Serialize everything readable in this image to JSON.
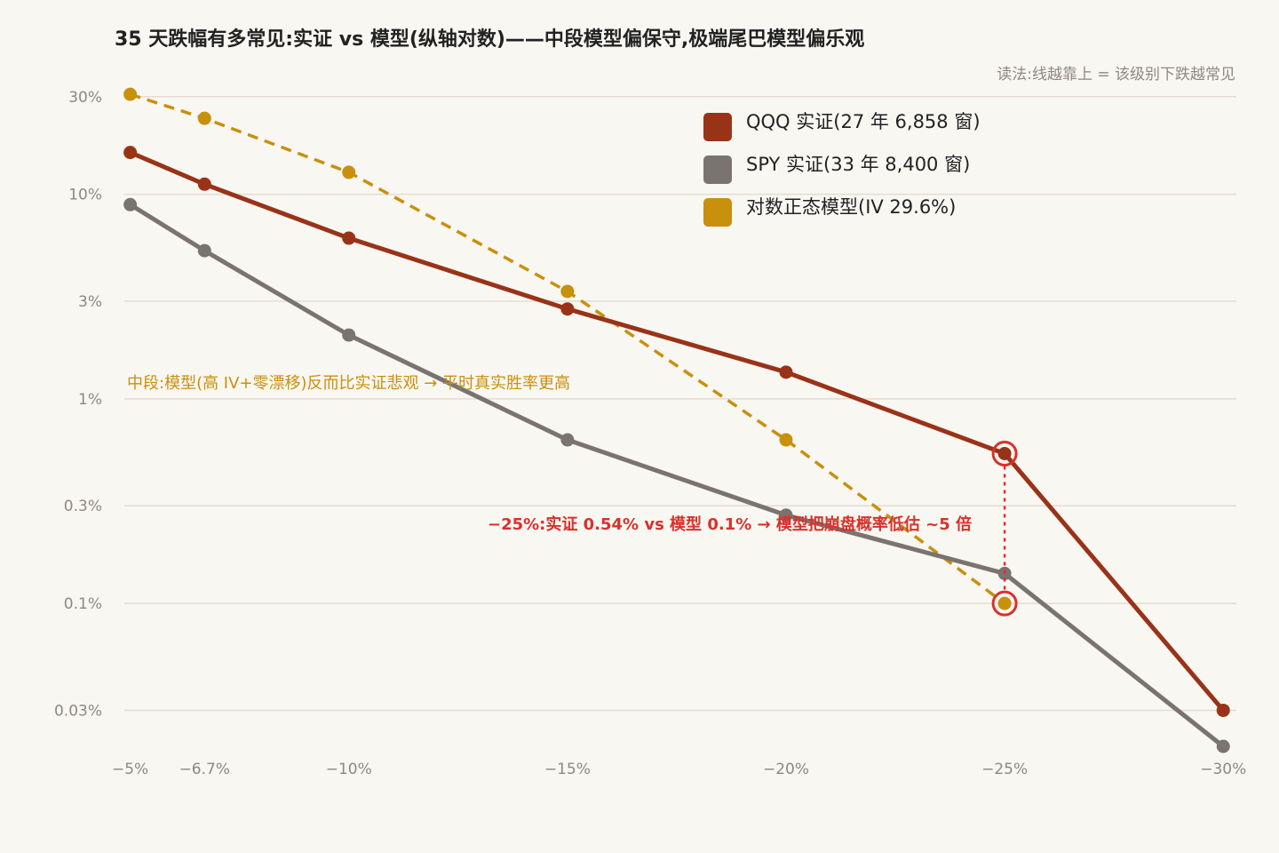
{
  "title": "35 天跌幅有多常见:实证 vs 模型(纵轴对数)——中段模型偏保守,极端尾巴模型偏乐观",
  "subtitle": "读法:线越靠上 = 该级别下跌越常见",
  "chart_data": {
    "type": "line",
    "yscale": "log",
    "ylim": [
      0.02,
      40
    ],
    "xlim": [
      -4.5,
      -30.3
    ],
    "grid": true,
    "legend_position": "top-right",
    "x_ticks": [
      {
        "value": -5,
        "label": "−5%"
      },
      {
        "value": -6.7,
        "label": "−6.7%"
      },
      {
        "value": -10,
        "label": "−10%"
      },
      {
        "value": -15,
        "label": "−15%"
      },
      {
        "value": -20,
        "label": "−20%"
      },
      {
        "value": -25,
        "label": "−25%"
      },
      {
        "value": -30,
        "label": "−30%"
      }
    ],
    "y_ticks": [
      {
        "value": 30,
        "label": "30%"
      },
      {
        "value": 10,
        "label": "10%"
      },
      {
        "value": 3,
        "label": "3%"
      },
      {
        "value": 1,
        "label": "1%"
      },
      {
        "value": 0.3,
        "label": "0.3%"
      },
      {
        "value": 0.1,
        "label": "0.1%"
      },
      {
        "value": 0.03,
        "label": "0.03%"
      }
    ],
    "series": [
      {
        "name": "QQQ 实证(27 年 6,858 窗)",
        "color": "#993318",
        "dash": false,
        "x": [
          -5,
          -6.7,
          -10,
          -15,
          -20,
          -25,
          -30
        ],
        "y": [
          16,
          11.2,
          6.1,
          2.75,
          1.35,
          0.54,
          0.03
        ]
      },
      {
        "name": "SPY 实证(33 年 8,400 窗)",
        "color": "#7a7370",
        "dash": false,
        "x": [
          -5,
          -6.7,
          -10,
          -15,
          -20,
          -25,
          -30
        ],
        "y": [
          8.9,
          5.3,
          2.05,
          0.63,
          0.27,
          0.14,
          0.02
        ]
      },
      {
        "name": "对数正态模型(IV 29.6%)",
        "color": "#c8900d",
        "dash": true,
        "x": [
          -5,
          -6.7,
          -10,
          -15,
          -20,
          -25
        ],
        "y": [
          30.8,
          23.5,
          12.8,
          3.35,
          0.63,
          0.1
        ]
      }
    ],
    "annotations": [
      {
        "text": "中段:模型(高 IV+零漂移)反而比实证悲观 → 平时真实胜率更高",
        "color": "#c8900d"
      },
      {
        "text": "−25%:实证 0.54% vs 模型 0.1% → 模型把崩盘概率低估 ~5 倍",
        "color": "#d9312b"
      }
    ],
    "highlight_color": "#d9312b",
    "highlights": [
      {
        "x": -25,
        "y": 0.54
      },
      {
        "x": -25,
        "y": 0.1
      }
    ]
  }
}
